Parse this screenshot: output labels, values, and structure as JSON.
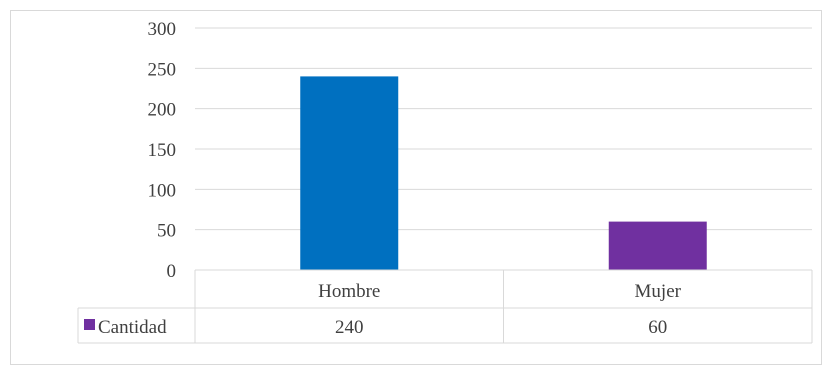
{
  "chart_data": {
    "type": "bar",
    "categories": [
      "Hombre",
      "Mujer"
    ],
    "series": [
      {
        "name": "Cantidad",
        "values": [
          240,
          60
        ],
        "color": "#6f2da8"
      }
    ],
    "bar_colors": [
      "#0070c0",
      "#7030a0"
    ],
    "ylim": [
      0,
      300
    ],
    "yticks": [
      "0",
      "50",
      "100",
      "150",
      "200",
      "250",
      "300"
    ],
    "grid": true,
    "data_table": {
      "legend_label": "Cantidad",
      "legend_color": "#7030a0",
      "values": [
        "240",
        "60"
      ]
    },
    "title": "",
    "xlabel": "",
    "ylabel": ""
  }
}
